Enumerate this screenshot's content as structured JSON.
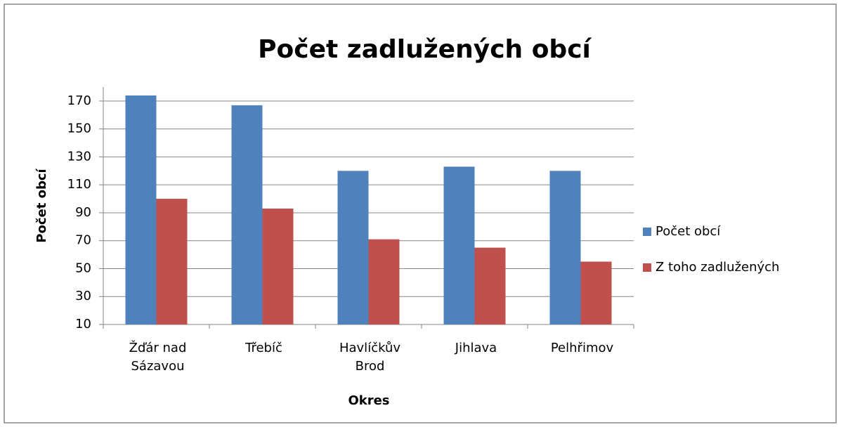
{
  "chart_data": {
    "type": "bar",
    "title": "Počet zadlužených obcí",
    "x_label": "Okres",
    "y_label": "Počet obcí",
    "categories": [
      "Žďár nad Sázavou",
      "Třebíč",
      "Havlíčkův Brod",
      "Jihlava",
      "Pelhřimov"
    ],
    "series": [
      {
        "name": "Počet obcí",
        "color": "#4f81bd",
        "values": [
          174,
          167,
          120,
          123,
          120
        ]
      },
      {
        "name": "Z toho zadlužených",
        "color": "#c0504d",
        "values": [
          100,
          93,
          71,
          65,
          55
        ]
      }
    ],
    "ylim": [
      10,
      180
    ],
    "yticks": [
      10,
      30,
      50,
      70,
      90,
      110,
      130,
      150,
      170
    ],
    "grid": true,
    "legend": "right"
  }
}
